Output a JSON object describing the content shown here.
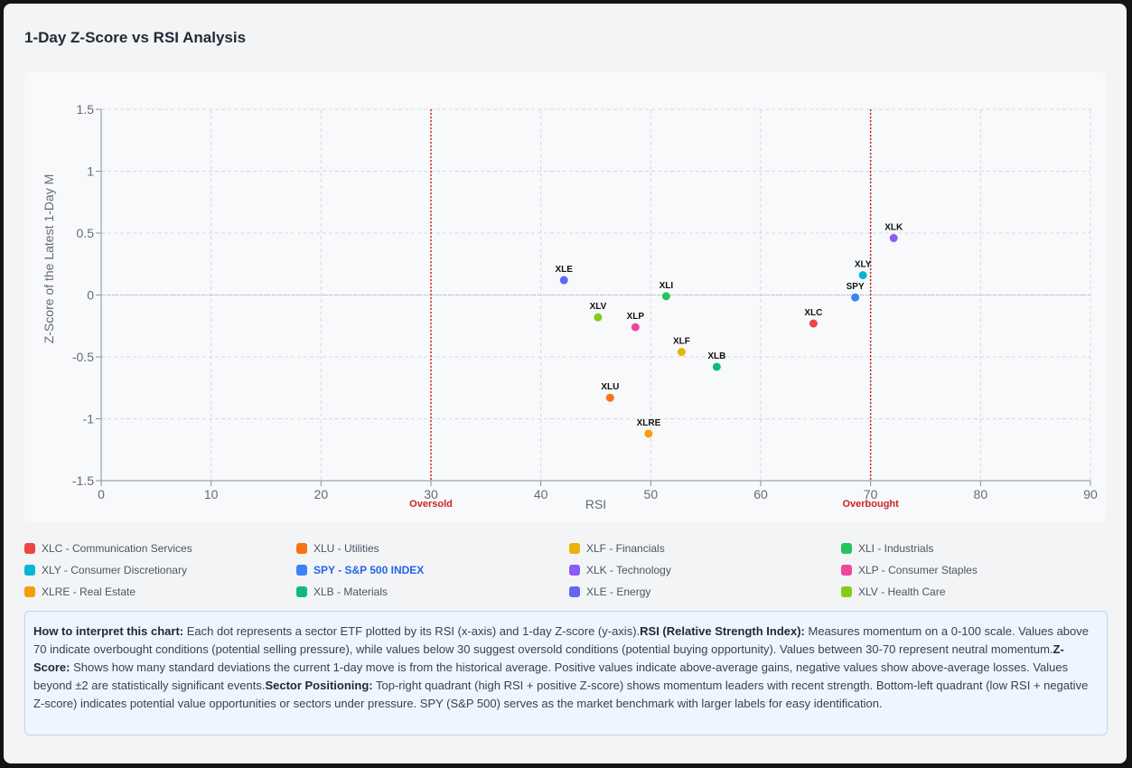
{
  "title": "1-Day Z-Score vs RSI Analysis",
  "chart_data": {
    "type": "scatter",
    "xlabel": "RSI",
    "ylabel": "Z-Score of the Latest 1-Day M",
    "xlim": [
      0,
      90
    ],
    "ylim": [
      -1.5,
      1.5
    ],
    "x_ticks": [
      "0",
      "10",
      "20",
      "30",
      "40",
      "50",
      "60",
      "70",
      "80",
      "90"
    ],
    "y_ticks": [
      "1.5",
      "1",
      "0.5",
      "0",
      "-0.5",
      "-1",
      "-1.5"
    ],
    "grid": true,
    "reference_lines": [
      {
        "axis": "x",
        "value": 30,
        "label": "Oversold",
        "color": "#cc2222"
      },
      {
        "axis": "x",
        "value": 70,
        "label": "Overbought",
        "color": "#cc2222"
      },
      {
        "axis": "y",
        "value": 0,
        "label": "",
        "color": "#b0b4ba"
      }
    ],
    "points": [
      {
        "label": "XLK",
        "x": 72.1,
        "y": 0.46,
        "color": "#8b5cf6"
      },
      {
        "label": "XLY",
        "x": 69.3,
        "y": 0.16,
        "color": "#06b6d4"
      },
      {
        "label": "SPY",
        "x": 68.6,
        "y": -0.02,
        "color": "#3b82f6"
      },
      {
        "label": "XLC",
        "x": 64.8,
        "y": -0.23,
        "color": "#ef4444"
      },
      {
        "label": "XLE",
        "x": 42.1,
        "y": 0.12,
        "color": "#6366f1"
      },
      {
        "label": "XLI",
        "x": 51.4,
        "y": -0.01,
        "color": "#22c55e"
      },
      {
        "label": "XLV",
        "x": 45.2,
        "y": -0.18,
        "color": "#84cc16"
      },
      {
        "label": "XLP",
        "x": 48.6,
        "y": -0.26,
        "color": "#ec4899"
      },
      {
        "label": "XLF",
        "x": 52.8,
        "y": -0.46,
        "color": "#eab308"
      },
      {
        "label": "XLB",
        "x": 56.0,
        "y": -0.58,
        "color": "#10b981"
      },
      {
        "label": "XLU",
        "x": 46.3,
        "y": -0.83,
        "color": "#f97316"
      },
      {
        "label": "XLRE",
        "x": 49.8,
        "y": -1.12,
        "color": "#f59e0b"
      }
    ]
  },
  "legend": [
    {
      "text": "XLC - Communication Services",
      "color": "#ef4444",
      "bench": false
    },
    {
      "text": "XLU - Utilities",
      "color": "#f97316",
      "bench": false
    },
    {
      "text": "XLF - Financials",
      "color": "#eab308",
      "bench": false
    },
    {
      "text": "XLI - Industrials",
      "color": "#22c55e",
      "bench": false
    },
    {
      "text": "XLY - Consumer Discretionary",
      "color": "#06b6d4",
      "bench": false
    },
    {
      "text": "SPY - S&P 500 INDEX",
      "color": "#3b82f6",
      "bench": true
    },
    {
      "text": "XLK - Technology",
      "color": "#8b5cf6",
      "bench": false
    },
    {
      "text": "XLP - Consumer Staples",
      "color": "#ec4899",
      "bench": false
    },
    {
      "text": "XLRE - Real Estate",
      "color": "#f59e0b",
      "bench": false
    },
    {
      "text": "XLB - Materials",
      "color": "#10b981",
      "bench": false
    },
    {
      "text": "XLE - Energy",
      "color": "#6366f1",
      "bench": false
    },
    {
      "text": "XLV - Health Care",
      "color": "#84cc16",
      "bench": false
    }
  ],
  "info": {
    "h1": "How to interpret this chart:",
    "t1": " Each dot represents a sector ETF plotted by its RSI (x-axis) and 1-day Z-score (y-axis).",
    "h2": "RSI (Relative Strength Index):",
    "t2": " Measures momentum on a 0-100 scale. Values above 70 indicate overbought conditions (potential selling pressure), while values below 30 suggest oversold conditions (potential buying opportunity). Values between 30-70 represent neutral momentum.",
    "h3": "Z-Score:",
    "t3": " Shows how many standard deviations the current 1-day move is from the historical average. Positive values indicate above-average gains, negative values show above-average losses. Values beyond ±2 are statistically significant events.",
    "h4": "Sector Positioning:",
    "t4": " Top-right quadrant (high RSI + positive Z-score) shows momentum leaders with recent strength. Bottom-left quadrant (low RSI + negative Z-score) indicates potential value opportunities or sectors under pressure. SPY (S&P 500) serves as the market benchmark with larger labels for easy identification."
  }
}
